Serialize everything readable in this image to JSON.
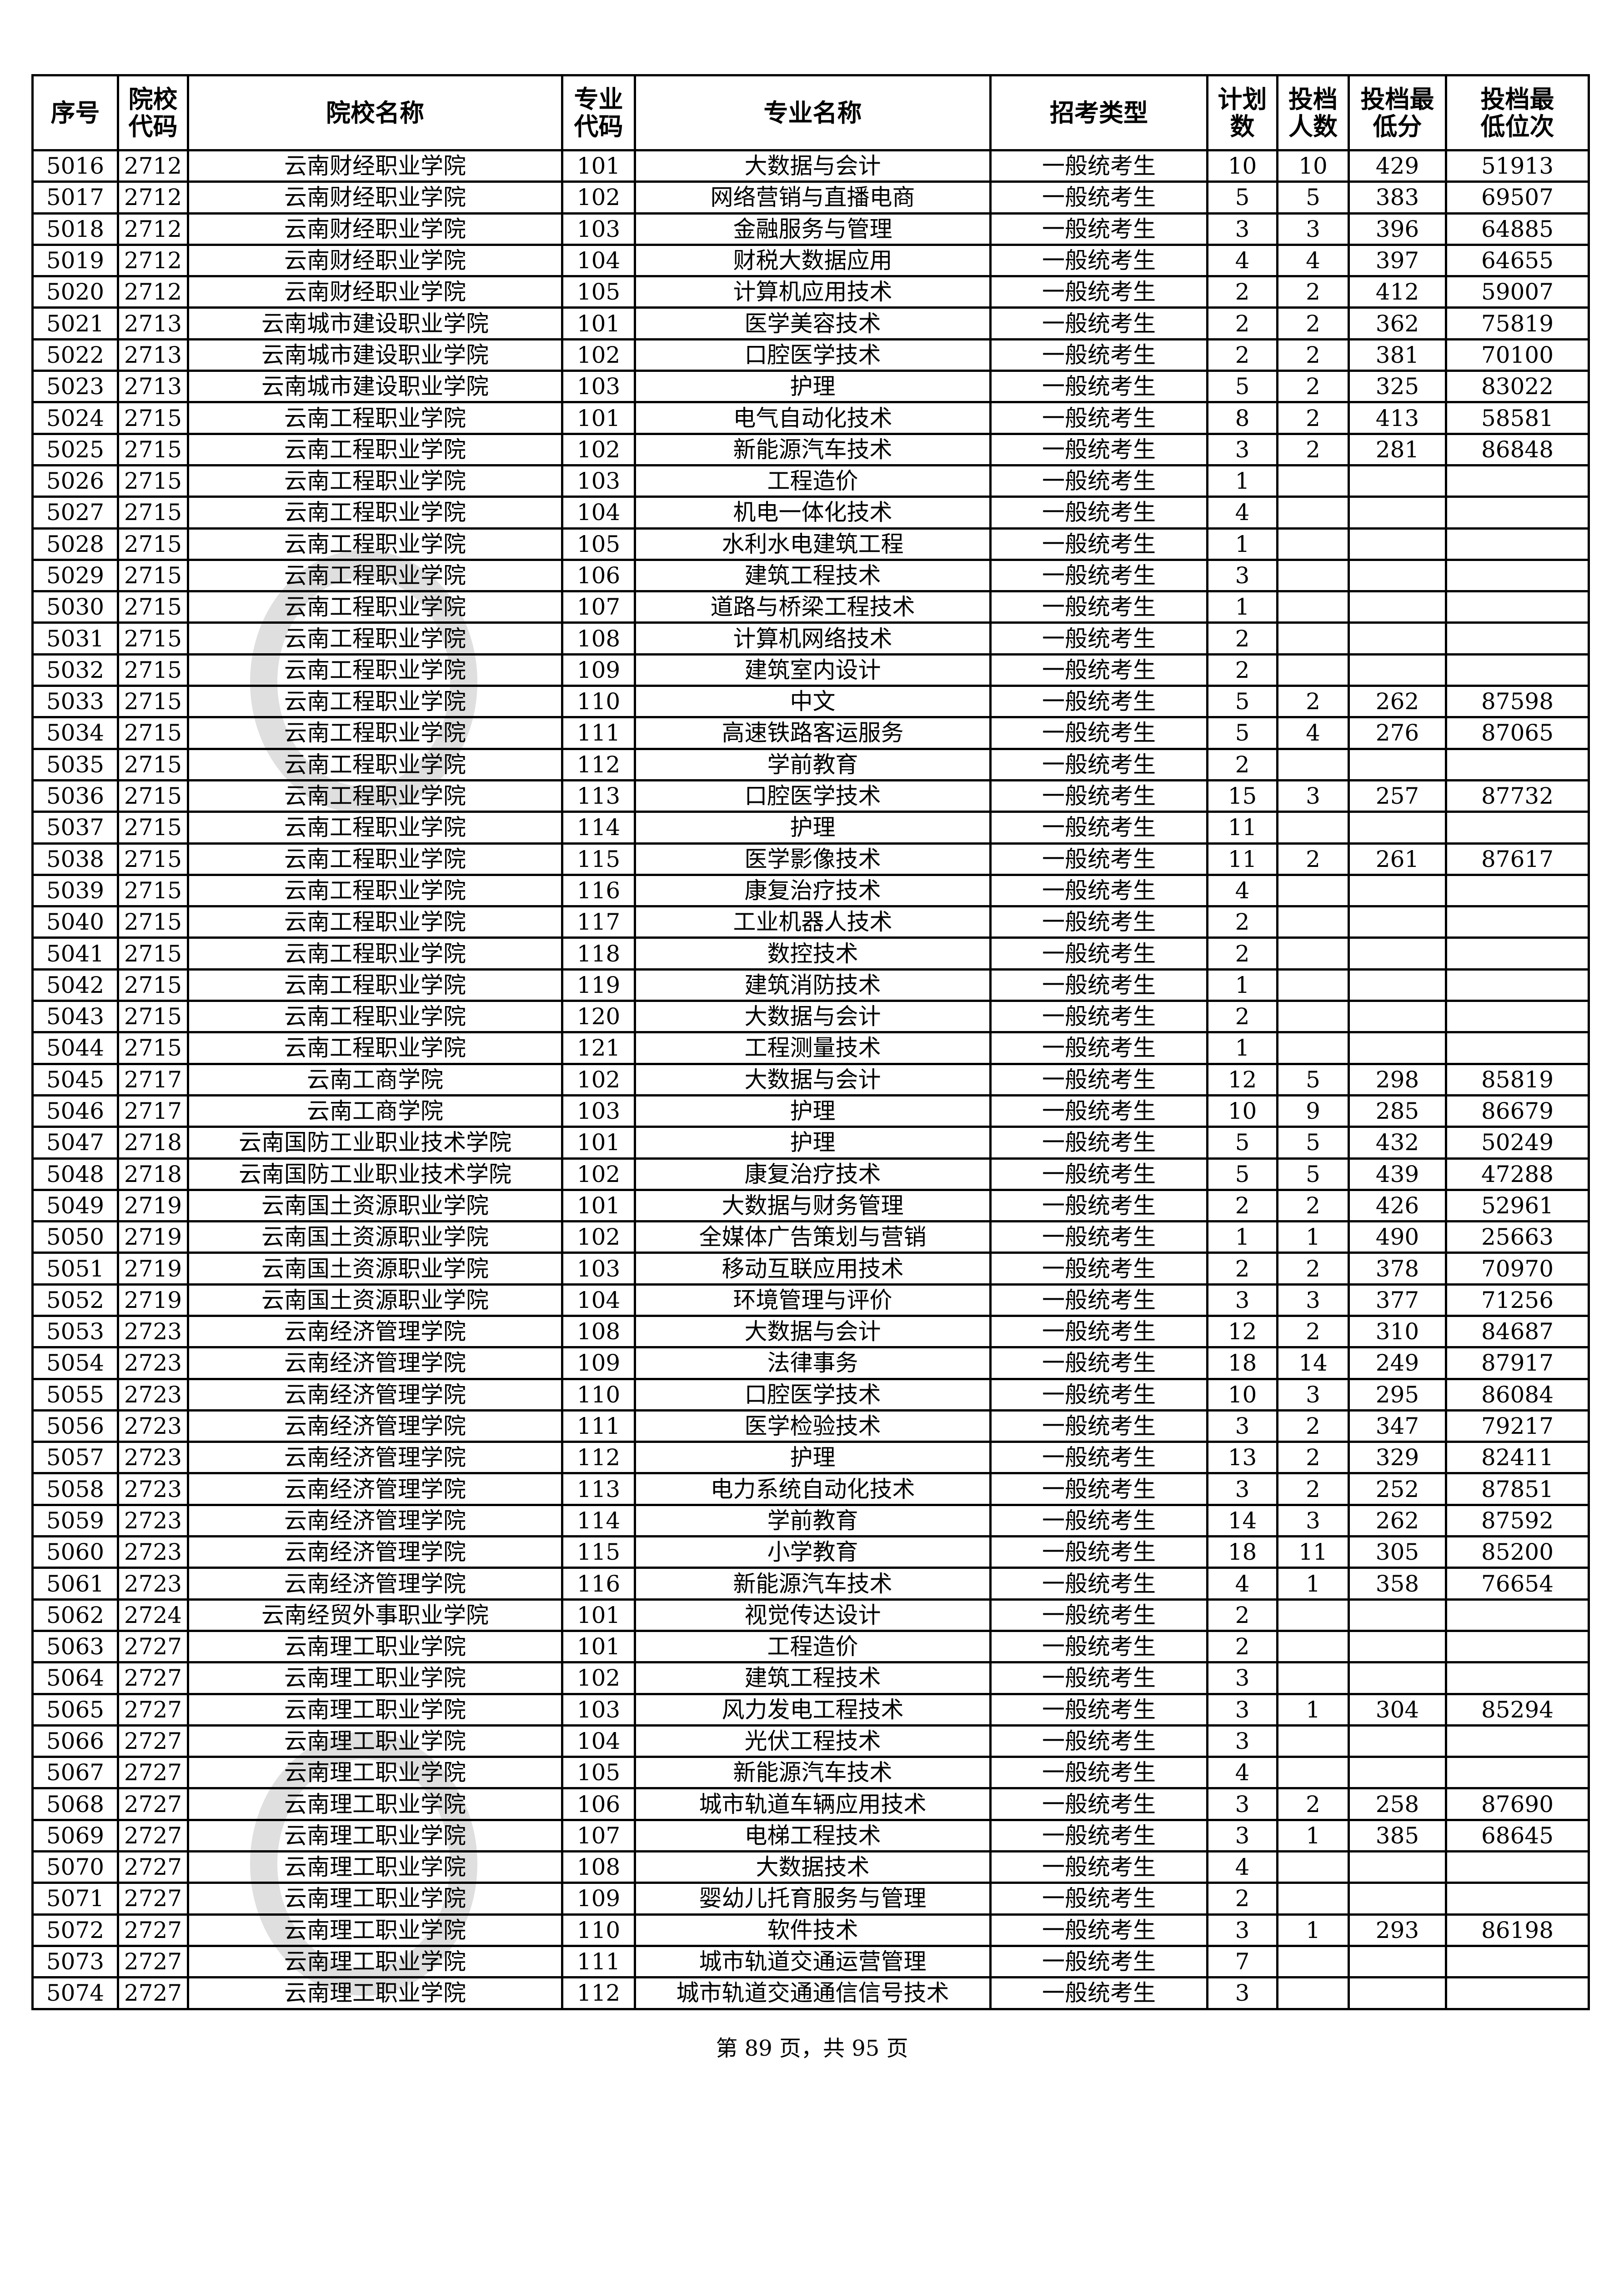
{
  "headers": [
    "序号",
    "院校代码",
    "院校名称",
    "专业代码",
    "专业名称",
    "招考类型",
    "计划数",
    "投档人数",
    "投档最低分",
    "投档最低位次"
  ],
  "header_lines": [
    [
      "序号"
    ],
    [
      "院校",
      "代码"
    ],
    [
      "院校名称"
    ],
    [
      "专业",
      "代码"
    ],
    [
      "专业名称"
    ],
    [
      "招考类型"
    ],
    [
      "计",
      "划数"
    ],
    [
      "投档",
      "人数"
    ],
    [
      "投档",
      "最低分"
    ],
    [
      "投档最",
      "低位次"
    ]
  ],
  "rows": [
    [
      "5016",
      "2712",
      "云南财经职业学院",
      "101",
      "大数据与会计",
      "一般统考生",
      "10",
      "10",
      "429",
      "51913"
    ],
    [
      "5017",
      "2712",
      "云南财经职业学院",
      "102",
      "网络营销与直播电商",
      "一般统考生",
      "5",
      "5",
      "383",
      "69507"
    ],
    [
      "5018",
      "2712",
      "云南财经职业学院",
      "103",
      "金融服务与管理",
      "一般统考生",
      "3",
      "3",
      "396",
      "64885"
    ],
    [
      "5019",
      "2712",
      "云南财经职业学院",
      "104",
      "财税大数据应用",
      "一般统考生",
      "4",
      "4",
      "397",
      "64655"
    ],
    [
      "5020",
      "2712",
      "云南财经职业学院",
      "105",
      "计算机应用技术",
      "一般统考生",
      "2",
      "2",
      "412",
      "59007"
    ],
    [
      "5021",
      "2713",
      "云南城市建设职业学院",
      "101",
      "医学美容技术",
      "一般统考生",
      "2",
      "2",
      "362",
      "75819"
    ],
    [
      "5022",
      "2713",
      "云南城市建设职业学院",
      "102",
      "口腔医学技术",
      "一般统考生",
      "2",
      "2",
      "381",
      "70100"
    ],
    [
      "5023",
      "2713",
      "云南城市建设职业学院",
      "103",
      "护理",
      "一般统考生",
      "5",
      "2",
      "325",
      "83022"
    ],
    [
      "5024",
      "2715",
      "云南工程职业学院",
      "101",
      "电气自动化技术",
      "一般统考生",
      "8",
      "2",
      "413",
      "58581"
    ],
    [
      "5025",
      "2715",
      "云南工程职业学院",
      "102",
      "新能源汽车技术",
      "一般统考生",
      "3",
      "2",
      "281",
      "86848"
    ],
    [
      "5026",
      "2715",
      "云南工程职业学院",
      "103",
      "工程造价",
      "一般统考生",
      "1",
      "",
      "",
      ""
    ],
    [
      "5027",
      "2715",
      "云南工程职业学院",
      "104",
      "机电一体化技术",
      "一般统考生",
      "4",
      "",
      "",
      ""
    ],
    [
      "5028",
      "2715",
      "云南工程职业学院",
      "105",
      "水利水电建筑工程",
      "一般统考生",
      "1",
      "",
      "",
      ""
    ],
    [
      "5029",
      "2715",
      "云南工程职业学院",
      "106",
      "建筑工程技术",
      "一般统考生",
      "3",
      "",
      "",
      ""
    ],
    [
      "5030",
      "2715",
      "云南工程职业学院",
      "107",
      "道路与桥梁工程技术",
      "一般统考生",
      "1",
      "",
      "",
      ""
    ],
    [
      "5031",
      "2715",
      "云南工程职业学院",
      "108",
      "计算机网络技术",
      "一般统考生",
      "2",
      "",
      "",
      ""
    ],
    [
      "5032",
      "2715",
      "云南工程职业学院",
      "109",
      "建筑室内设计",
      "一般统考生",
      "2",
      "",
      "",
      ""
    ],
    [
      "5033",
      "2715",
      "云南工程职业学院",
      "110",
      "中文",
      "一般统考生",
      "5",
      "2",
      "262",
      "87598"
    ],
    [
      "5034",
      "2715",
      "云南工程职业学院",
      "111",
      "高速铁路客运服务",
      "一般统考生",
      "5",
      "4",
      "276",
      "87065"
    ],
    [
      "5035",
      "2715",
      "云南工程职业学院",
      "112",
      "学前教育",
      "一般统考生",
      "2",
      "",
      "",
      ""
    ],
    [
      "5036",
      "2715",
      "云南工程职业学院",
      "113",
      "口腔医学技术",
      "一般统考生",
      "15",
      "3",
      "257",
      "87732"
    ],
    [
      "5037",
      "2715",
      "云南工程职业学院",
      "114",
      "护理",
      "一般统考生",
      "11",
      "",
      "",
      ""
    ],
    [
      "5038",
      "2715",
      "云南工程职业学院",
      "115",
      "医学影像技术",
      "一般统考生",
      "11",
      "2",
      "261",
      "87617"
    ],
    [
      "5039",
      "2715",
      "云南工程职业学院",
      "116",
      "康复治疗技术",
      "一般统考生",
      "4",
      "",
      "",
      ""
    ],
    [
      "5040",
      "2715",
      "云南工程职业学院",
      "117",
      "工业机器人技术",
      "一般统考生",
      "2",
      "",
      "",
      ""
    ],
    [
      "5041",
      "2715",
      "云南工程职业学院",
      "118",
      "数控技术",
      "一般统考生",
      "2",
      "",
      "",
      ""
    ],
    [
      "5042",
      "2715",
      "云南工程职业学院",
      "119",
      "建筑消防技术",
      "一般统考生",
      "1",
      "",
      "",
      ""
    ],
    [
      "5043",
      "2715",
      "云南工程职业学院",
      "120",
      "大数据与会计",
      "一般统考生",
      "2",
      "",
      "",
      ""
    ],
    [
      "5044",
      "2715",
      "云南工程职业学院",
      "121",
      "工程测量技术",
      "一般统考生",
      "1",
      "",
      "",
      ""
    ],
    [
      "5045",
      "2717",
      "云南工商学院",
      "102",
      "大数据与会计",
      "一般统考生",
      "12",
      "5",
      "298",
      "85819"
    ],
    [
      "5046",
      "2717",
      "云南工商学院",
      "103",
      "护理",
      "一般统考生",
      "10",
      "9",
      "285",
      "86679"
    ],
    [
      "5047",
      "2718",
      "云南国防工业职业技术学院",
      "101",
      "护理",
      "一般统考生",
      "5",
      "5",
      "432",
      "50249"
    ],
    [
      "5048",
      "2718",
      "云南国防工业职业技术学院",
      "102",
      "康复治疗技术",
      "一般统考生",
      "5",
      "5",
      "439",
      "47288"
    ],
    [
      "5049",
      "2719",
      "云南国土资源职业学院",
      "101",
      "大数据与财务管理",
      "一般统考生",
      "2",
      "2",
      "426",
      "52961"
    ],
    [
      "5050",
      "2719",
      "云南国土资源职业学院",
      "102",
      "全媒体广告策划与营销",
      "一般统考生",
      "1",
      "1",
      "490",
      "25663"
    ],
    [
      "5051",
      "2719",
      "云南国土资源职业学院",
      "103",
      "移动互联应用技术",
      "一般统考生",
      "2",
      "2",
      "378",
      "70970"
    ],
    [
      "5052",
      "2719",
      "云南国土资源职业学院",
      "104",
      "环境管理与评价",
      "一般统考生",
      "3",
      "3",
      "377",
      "71256"
    ],
    [
      "5053",
      "2723",
      "云南经济管理学院",
      "108",
      "大数据与会计",
      "一般统考生",
      "12",
      "2",
      "310",
      "84687"
    ],
    [
      "5054",
      "2723",
      "云南经济管理学院",
      "109",
      "法律事务",
      "一般统考生",
      "18",
      "14",
      "249",
      "87917"
    ],
    [
      "5055",
      "2723",
      "云南经济管理学院",
      "110",
      "口腔医学技术",
      "一般统考生",
      "10",
      "3",
      "295",
      "86084"
    ],
    [
      "5056",
      "2723",
      "云南经济管理学院",
      "111",
      "医学检验技术",
      "一般统考生",
      "3",
      "2",
      "347",
      "79217"
    ],
    [
      "5057",
      "2723",
      "云南经济管理学院",
      "112",
      "护理",
      "一般统考生",
      "13",
      "2",
      "329",
      "82411"
    ],
    [
      "5058",
      "2723",
      "云南经济管理学院",
      "113",
      "电力系统自动化技术",
      "一般统考生",
      "3",
      "2",
      "252",
      "87851"
    ],
    [
      "5059",
      "2723",
      "云南经济管理学院",
      "114",
      "学前教育",
      "一般统考生",
      "14",
      "3",
      "262",
      "87592"
    ],
    [
      "5060",
      "2723",
      "云南经济管理学院",
      "115",
      "小学教育",
      "一般统考生",
      "18",
      "11",
      "305",
      "85200"
    ],
    [
      "5061",
      "2723",
      "云南经济管理学院",
      "116",
      "新能源汽车技术",
      "一般统考生",
      "4",
      "1",
      "358",
      "76654"
    ],
    [
      "5062",
      "2724",
      "云南经贸外事职业学院",
      "101",
      "视觉传达设计",
      "一般统考生",
      "2",
      "",
      "",
      ""
    ],
    [
      "5063",
      "2727",
      "云南理工职业学院",
      "101",
      "工程造价",
      "一般统考生",
      "2",
      "",
      "",
      ""
    ],
    [
      "5064",
      "2727",
      "云南理工职业学院",
      "102",
      "建筑工程技术",
      "一般统考生",
      "3",
      "",
      "",
      ""
    ],
    [
      "5065",
      "2727",
      "云南理工职业学院",
      "103",
      "风力发电工程技术",
      "一般统考生",
      "3",
      "1",
      "304",
      "85294"
    ],
    [
      "5066",
      "2727",
      "云南理工职业学院",
      "104",
      "光伏工程技术",
      "一般统考生",
      "3",
      "",
      "",
      ""
    ],
    [
      "5067",
      "2727",
      "云南理工职业学院",
      "105",
      "新能源汽车技术",
      "一般统考生",
      "4",
      "",
      "",
      ""
    ],
    [
      "5068",
      "2727",
      "云南理工职业学院",
      "106",
      "城市轨道车辆应用技术",
      "一般统考生",
      "3",
      "2",
      "258",
      "87690"
    ],
    [
      "5069",
      "2727",
      "云南理工职业学院",
      "107",
      "电梯工程技术",
      "一般统考生",
      "3",
      "1",
      "385",
      "68645"
    ],
    [
      "5070",
      "2727",
      "云南理工职业学院",
      "108",
      "大数据技术",
      "一般统考生",
      "4",
      "",
      "",
      ""
    ],
    [
      "5071",
      "2727",
      "云南理工职业学院",
      "109",
      "婴幼儿托育服务与管理",
      "一般统考生",
      "2",
      "",
      "",
      ""
    ],
    [
      "5072",
      "2727",
      "云南理工职业学院",
      "110",
      "软件技术",
      "一般统考生",
      "3",
      "1",
      "293",
      "86198"
    ],
    [
      "5073",
      "2727",
      "云南理工职业学院",
      "111",
      "城市轨道交通运营管理",
      "一般统考生",
      "7",
      "",
      "",
      ""
    ],
    [
      "5074",
      "2727",
      "云南理工职业学院",
      "112",
      "城市轨道交通通信信号技术",
      "一般统考生",
      "3",
      "",
      "",
      ""
    ]
  ],
  "footer": "第 89 页，共 95 页",
  "watermark": "贵州省招生考试院"
}
